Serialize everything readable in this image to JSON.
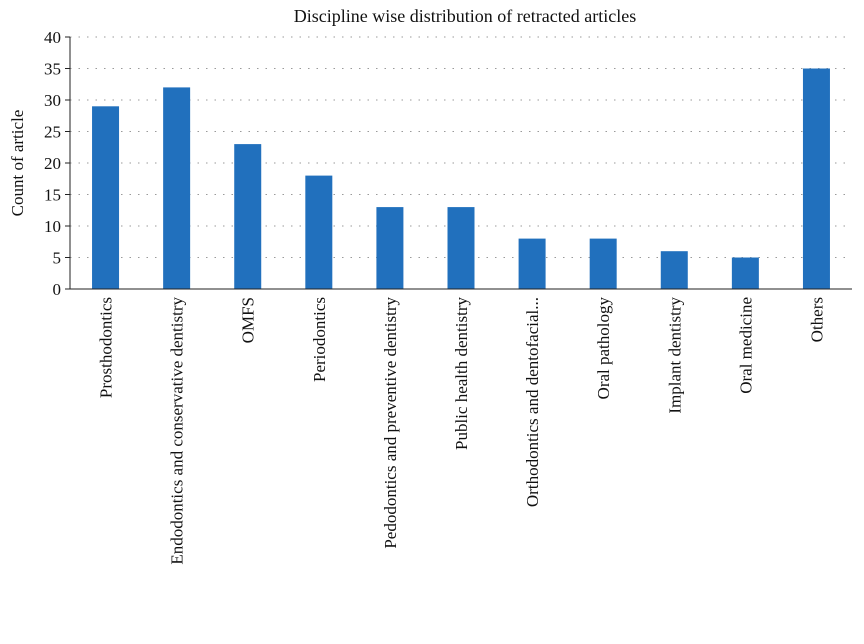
{
  "chart_data": {
    "type": "bar",
    "title": "Discipline wise distribution of retracted articles",
    "xlabel": "",
    "ylabel": "Count of article",
    "ylim": [
      0,
      40
    ],
    "yticks": [
      0,
      5,
      10,
      15,
      20,
      25,
      30,
      35,
      40
    ],
    "grid": true,
    "bar_color": "#2170bd",
    "categories": [
      "Prosthodontics",
      "Endodontics and conservative dentistry",
      "OMFS",
      "Periodontics",
      "Pedodontics and preventive dentistry",
      "Public health dentistry",
      "Orthodontics and dentofacial...",
      "Oral pathology",
      "Implant dentistry",
      "Oral medicine",
      "Others"
    ],
    "values": [
      29,
      32,
      23,
      18,
      13,
      13,
      8,
      8,
      6,
      5,
      35
    ]
  }
}
